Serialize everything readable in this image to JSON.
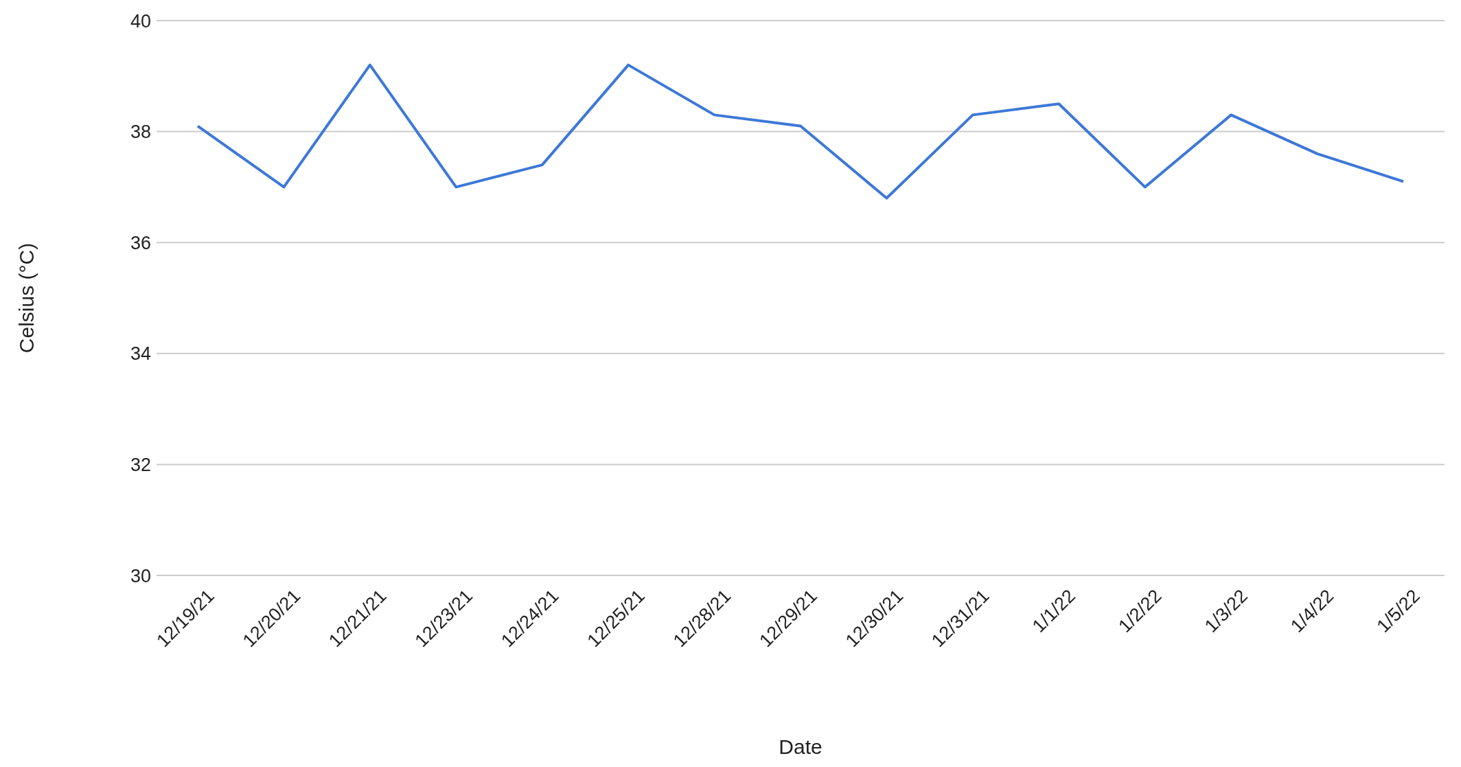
{
  "chart_data": {
    "type": "line",
    "xlabel": "Date",
    "ylabel": "Celsius (°C)",
    "categories": [
      "12/19/21",
      "12/20/21",
      "12/21/21",
      "12/23/21",
      "12/24/21",
      "12/25/21",
      "12/28/21",
      "12/29/21",
      "12/30/21",
      "12/31/21",
      "1/1/22",
      "1/2/22",
      "1/3/22",
      "1/4/22",
      "1/5/22"
    ],
    "series": [
      {
        "color": "#3d78d8",
        "values": [
          38.1,
          37.0,
          39.2,
          37.0,
          37.4,
          39.2,
          38.3,
          38.1,
          36.8,
          38.3,
          38.5,
          37.0,
          38.3,
          37.6,
          37.1
        ]
      }
    ],
    "ylim": [
      30,
      40
    ],
    "yticks": [
      30,
      32,
      34,
      36,
      38,
      40
    ],
    "grid": "y",
    "marker": "none",
    "line_style": "solid"
  }
}
